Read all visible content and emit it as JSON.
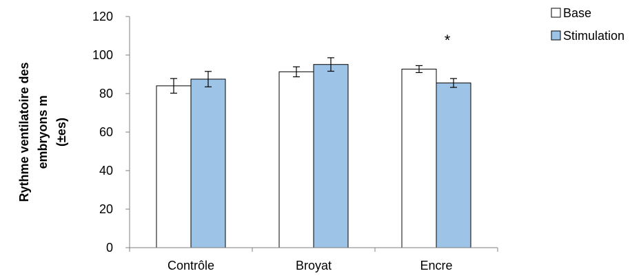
{
  "chart_data": {
    "type": "bar",
    "categories": [
      "Contrôle",
      "Broyat",
      "Encre"
    ],
    "series": [
      {
        "name": "Base",
        "values": [
          84,
          91.3,
          92.7
        ],
        "errors": [
          3.8,
          2.6,
          1.8
        ],
        "fill": "#ffffff",
        "stroke": "#000000"
      },
      {
        "name": "Stimulation",
        "values": [
          87.5,
          95.1,
          85.5
        ],
        "errors": [
          4.0,
          3.5,
          2.3
        ],
        "fill": "#9dc3e6",
        "stroke": "#000000"
      }
    ],
    "ylabel_lines": [
      "Rythme ventilatoire des",
      "embryons m",
      "(±es)"
    ],
    "ylim": [
      0,
      120
    ],
    "yticks": [
      "0",
      "20",
      "40",
      "60",
      "80",
      "100",
      "120"
    ],
    "annotations": [
      {
        "text": "*",
        "category": "Encre"
      }
    ],
    "grid": false,
    "legend": "top-right"
  }
}
